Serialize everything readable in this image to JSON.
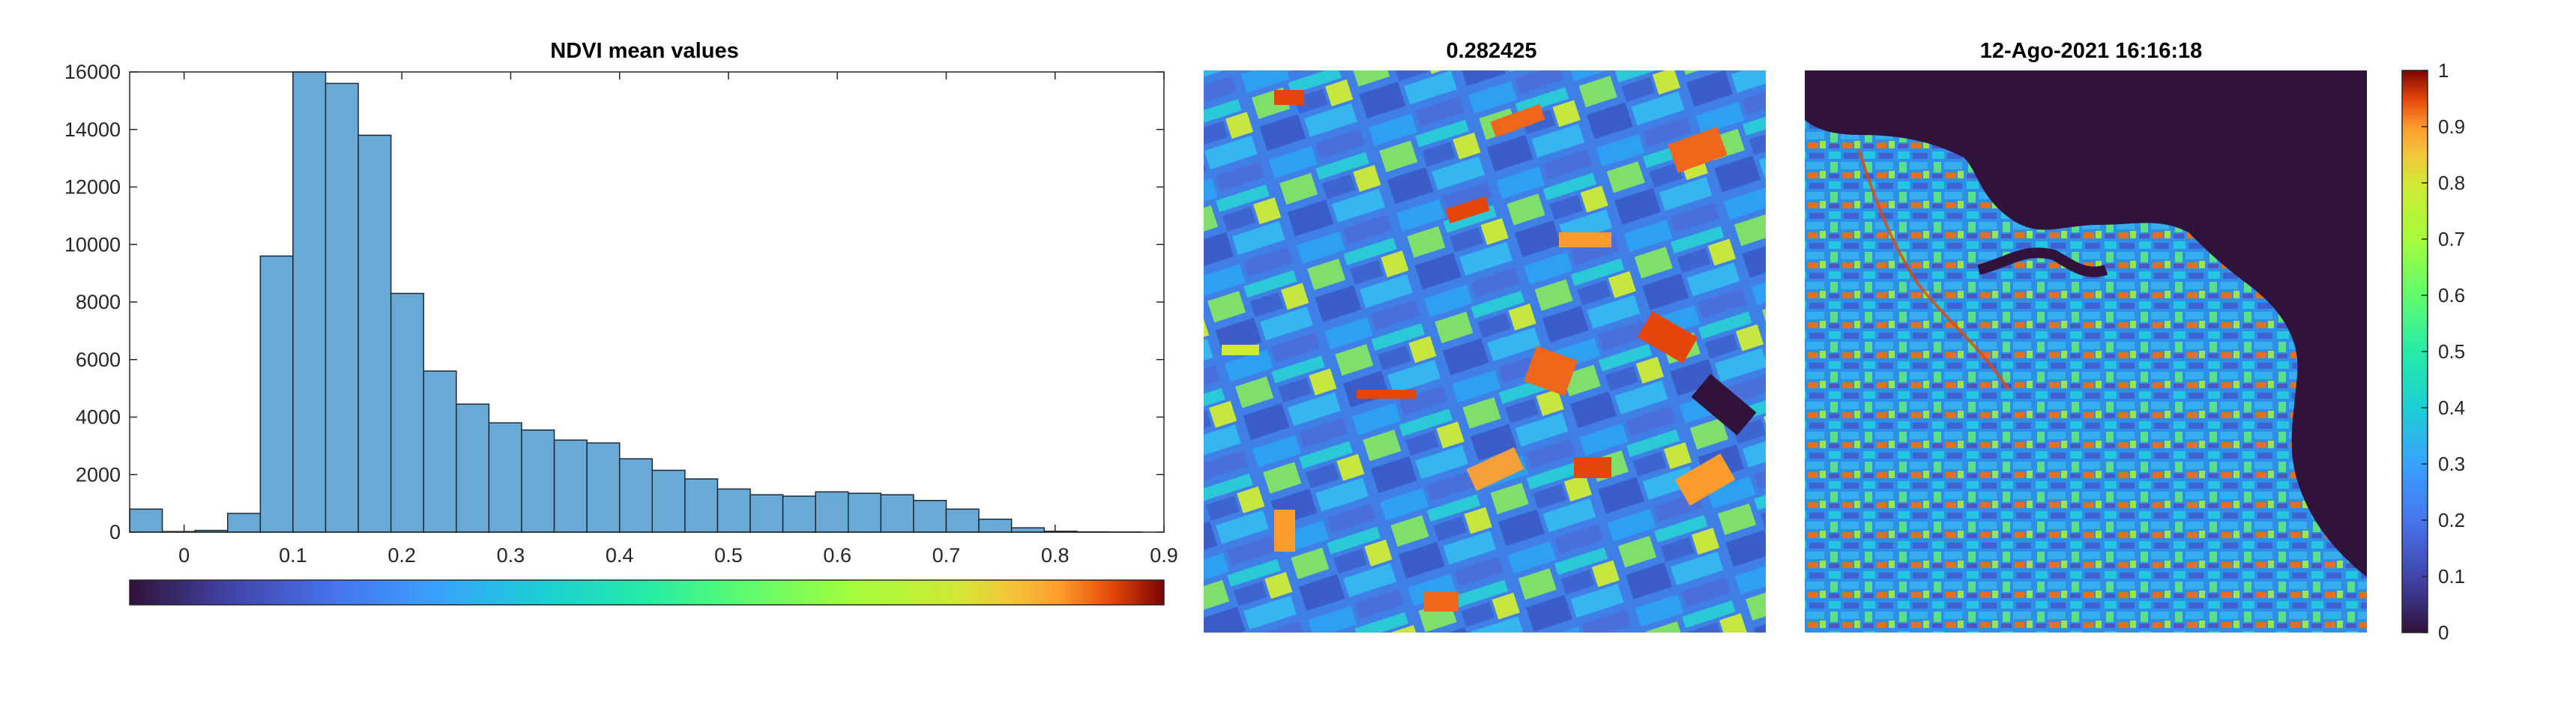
{
  "titles": {
    "histogram": "NDVI mean values",
    "image_left": "0.282425",
    "image_right": "12-Ago-2021 16:16:18"
  },
  "chart_data": [
    {
      "type": "bar",
      "title": "NDVI mean values",
      "xlabel": "",
      "ylabel": "",
      "bin_edges": [
        -0.05,
        -0.02,
        0.01,
        0.04,
        0.07,
        0.1,
        0.13,
        0.16,
        0.19,
        0.22,
        0.25,
        0.28,
        0.31,
        0.34,
        0.37,
        0.4,
        0.43,
        0.46,
        0.49,
        0.52,
        0.55,
        0.58,
        0.61,
        0.64,
        0.67,
        0.7,
        0.73,
        0.76,
        0.79,
        0.82,
        0.85,
        0.88
      ],
      "values": [
        800,
        20,
        60,
        650,
        9600,
        16200,
        15600,
        13800,
        8300,
        5600,
        4450,
        3800,
        3550,
        3200,
        3100,
        2550,
        2150,
        1850,
        1500,
        1300,
        1250,
        1400,
        1350,
        1300,
        1100,
        800,
        450,
        150,
        30,
        10,
        5
      ],
      "xlim": [
        -0.05,
        0.9
      ],
      "ylim": [
        0,
        16000
      ],
      "xticks": [
        "0",
        "0.1",
        "0.2",
        "0.3",
        "0.4",
        "0.5",
        "0.6",
        "0.7",
        "0.8",
        "0.9"
      ],
      "yticks": [
        "0",
        "2000",
        "4000",
        "6000",
        "8000",
        "10000",
        "12000",
        "14000",
        "16000"
      ],
      "bar_color": "#69a9d6",
      "edge_color": "#1f2a36",
      "colorbar": {
        "orientation": "horizontal",
        "colormap": "turbo"
      }
    },
    {
      "type": "heatmap",
      "title": "0.282425",
      "colormap": "turbo",
      "content": "NDVI map of agricultural fields"
    },
    {
      "type": "heatmap",
      "title": "12-Ago-2021 16:16:18",
      "colormap": "turbo",
      "clim": [
        0,
        1
      ],
      "colorbar_ticks": [
        "0",
        "0.1",
        "0.2",
        "0.3",
        "0.4",
        "0.5",
        "0.6",
        "0.7",
        "0.8",
        "0.9",
        "1"
      ],
      "content": "NDVI map of coastal region with sea"
    }
  ]
}
